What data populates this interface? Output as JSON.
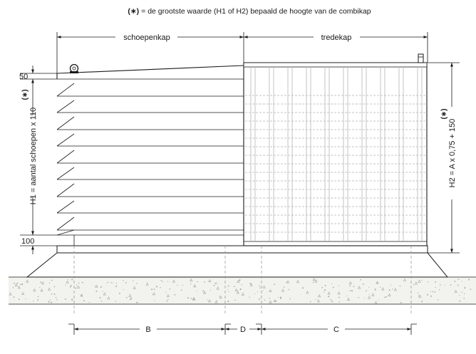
{
  "note": {
    "marker": "(∗)",
    "text": "= de grootste waarde (H1 of H2) bepaald de hoogte van de combikap"
  },
  "labels": {
    "schoepenkap": "schoepenkap",
    "tredekap": "tredekap",
    "dim_50": "50",
    "dim_100": "100",
    "h1_marker": "(∗)",
    "h1": "H1 = aantal schoepen x 110",
    "h2_marker": "(∗)",
    "h2": "H2 = A x 0,75 + 150",
    "dim_b": "B",
    "dim_d": "D",
    "dim_c": "C"
  },
  "colors": {
    "line": "#1a1a1a",
    "hidden_line": "#9a9a9a",
    "grate": "#b4b4b4",
    "concrete_fill": "#f2f2ee",
    "concrete_speckle": "#a8a8a0"
  }
}
